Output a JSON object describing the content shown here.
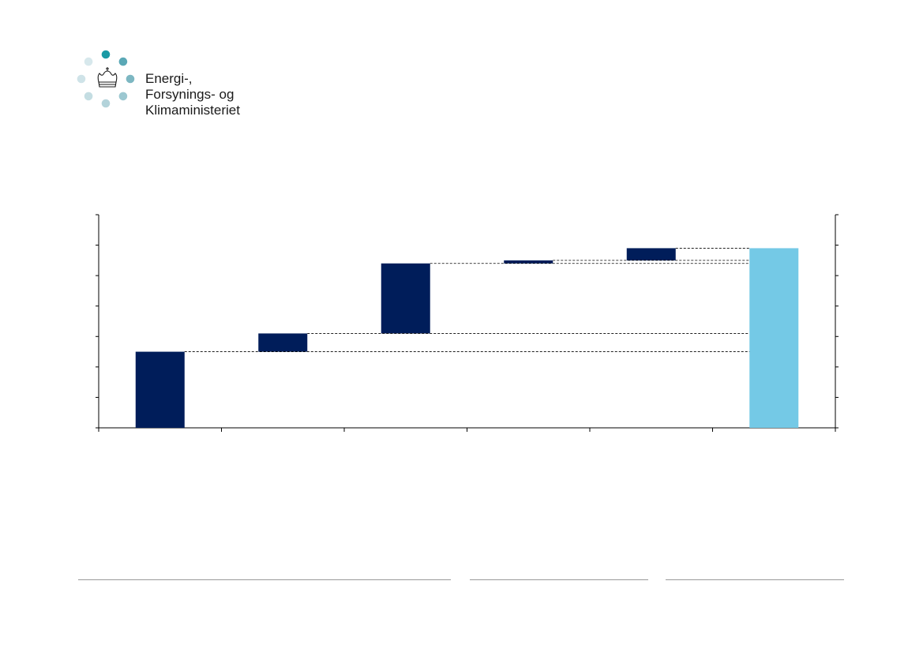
{
  "logo": {
    "icon": "crown-icon",
    "dot_colors": [
      "#1a9aa5",
      "#5aa8b6",
      "#7db7c2",
      "#9cc8d1",
      "#b3d3da",
      "#c4dde2",
      "#cfe3e8",
      "#d7e8ec"
    ],
    "lines": [
      "Energi-,",
      "Forsynings- og",
      "Klimaministeriet"
    ]
  },
  "chart_data": {
    "type": "bar",
    "subtype": "waterfall",
    "categories": [
      "",
      "",
      "",
      "",
      "",
      ""
    ],
    "steps": [
      {
        "kind": "total",
        "value": 2.5
      },
      {
        "kind": "increase",
        "value": 0.6
      },
      {
        "kind": "increase",
        "value": 2.3
      },
      {
        "kind": "increase",
        "value": 0.1
      },
      {
        "kind": "increase",
        "value": 0.4
      },
      {
        "kind": "total",
        "value": 5.9
      }
    ],
    "ylim": [
      0,
      7
    ],
    "y_ticks": 8,
    "secondary_axis": true,
    "colors": {
      "step": "#001d5a",
      "total": "#74c9e6",
      "axis": "#000000"
    },
    "title": "",
    "xlabel": "",
    "ylabel": ""
  },
  "footer": {
    "rule_color": "#9a9a9a"
  }
}
